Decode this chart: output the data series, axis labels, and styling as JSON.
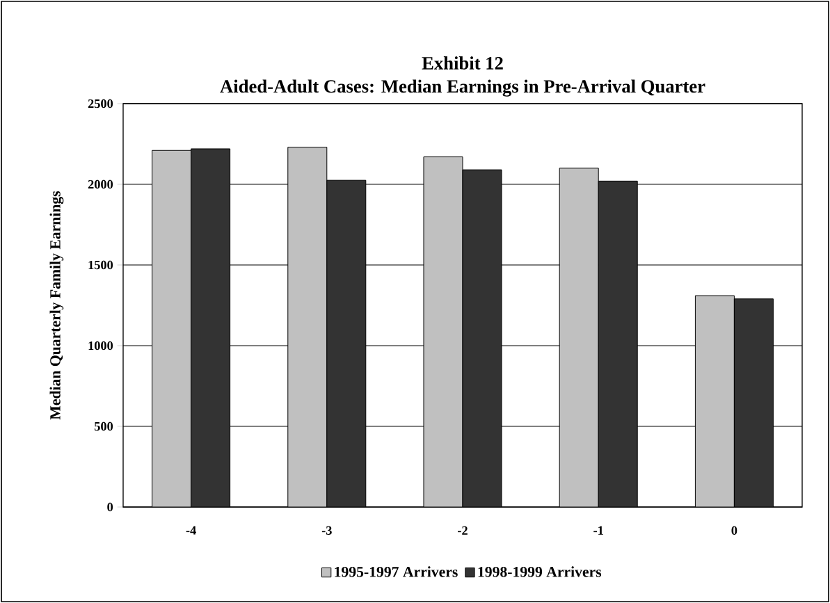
{
  "chart_data": {
    "type": "bar",
    "title": "Exhibit 12",
    "subtitle": "Aided-Adult Cases: Median Earnings in Pre-Arrival Quarter",
    "ylabel": "Median Quarterly Family Earnings",
    "categories": [
      "-4",
      "-3",
      "-2",
      "-1",
      "0"
    ],
    "series": [
      {
        "name": "1995-1997 Arrivers",
        "color": "#c0c0c0",
        "values": [
          2210,
          2230,
          2170,
          2100,
          1310
        ]
      },
      {
        "name": "1998-1999 Arrivers",
        "color": "#333333",
        "values": [
          2220,
          2025,
          2090,
          2020,
          1290
        ]
      }
    ],
    "ylim": [
      0,
      2500
    ],
    "yticks": [
      0,
      500,
      1000,
      1500,
      2000,
      2500
    ],
    "grid": "y",
    "legend": "bottom"
  }
}
